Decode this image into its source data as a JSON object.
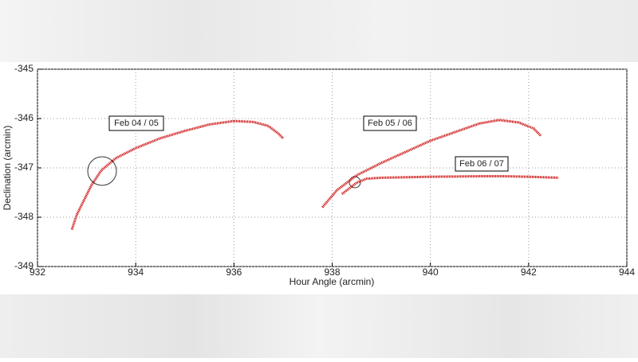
{
  "chart_data": {
    "type": "line",
    "x_label": "Hour Angle (arcmin)",
    "y_label": "Declination (arcmin)",
    "xlim": [
      932,
      944
    ],
    "xticks": [
      932,
      934,
      936,
      938,
      940,
      942,
      944
    ],
    "ylim": [
      -349,
      -345
    ],
    "yticks": [
      -349,
      -348,
      -347,
      -346,
      -345
    ],
    "grid": true,
    "series": [
      {
        "name": "Feb 04 / 05",
        "color": "#cc1111",
        "x": [
          932.7,
          932.8,
          932.95,
          933.1,
          933.3,
          933.6,
          934.0,
          934.5,
          935.0,
          935.5,
          936.0,
          936.4,
          936.7,
          936.9,
          937.0
        ],
        "values": [
          -348.25,
          -347.95,
          -347.65,
          -347.35,
          -347.05,
          -346.8,
          -346.6,
          -346.4,
          -346.25,
          -346.12,
          -346.05,
          -346.07,
          -346.15,
          -346.3,
          -346.4
        ]
      },
      {
        "name": "Feb 05 / 06",
        "color": "#cc1111",
        "x": [
          937.8,
          938.1,
          938.5,
          939.0,
          940.0,
          941.0,
          941.4,
          941.8,
          942.1,
          942.25
        ],
        "values": [
          -347.8,
          -347.45,
          -347.15,
          -346.9,
          -346.45,
          -346.1,
          -346.03,
          -346.08,
          -346.2,
          -346.35
        ]
      },
      {
        "name": "Feb 06 / 07",
        "color": "#cc1111",
        "x": [
          938.2,
          938.5,
          938.7,
          939.0,
          940.0,
          941.0,
          941.5,
          942.0,
          942.6
        ],
        "values": [
          -347.53,
          -347.3,
          -347.22,
          -347.2,
          -347.18,
          -347.17,
          -347.17,
          -347.18,
          -347.2
        ]
      }
    ]
  }
}
